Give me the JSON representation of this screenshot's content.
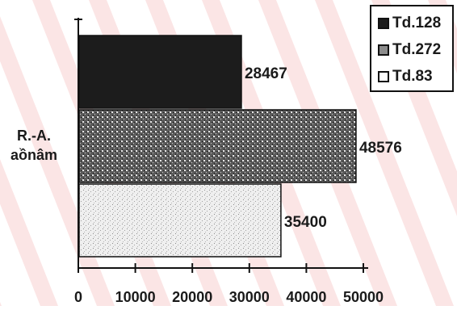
{
  "chart_data": {
    "type": "bar",
    "orientation": "horizontal",
    "categories": [
      "R.-A. aồnâm"
    ],
    "category_label_lines": [
      "R.-A.",
      "aồnâm"
    ],
    "series": [
      {
        "name": "Td.128",
        "values": [
          28467
        ],
        "data_label": "28467",
        "color": "#1c1c1c",
        "pattern": "solid-dark"
      },
      {
        "name": "Td.272",
        "values": [
          48576
        ],
        "data_label": "48576",
        "color": "#7a7a7a",
        "pattern": "dark-speckle"
      },
      {
        "name": "Td.83",
        "values": [
          35400
        ],
        "data_label": "35400",
        "color": "#ececec",
        "pattern": "light-speckle"
      }
    ],
    "xlim": [
      0,
      50000
    ],
    "x_ticks": [
      "0",
      "10000",
      "20000",
      "30000",
      "40000",
      "50000"
    ],
    "legend": {
      "position": "top-right"
    },
    "grid": false,
    "title": "",
    "xlabel": "",
    "ylabel": ""
  },
  "watermark": {
    "color": "#f7cfcf"
  }
}
